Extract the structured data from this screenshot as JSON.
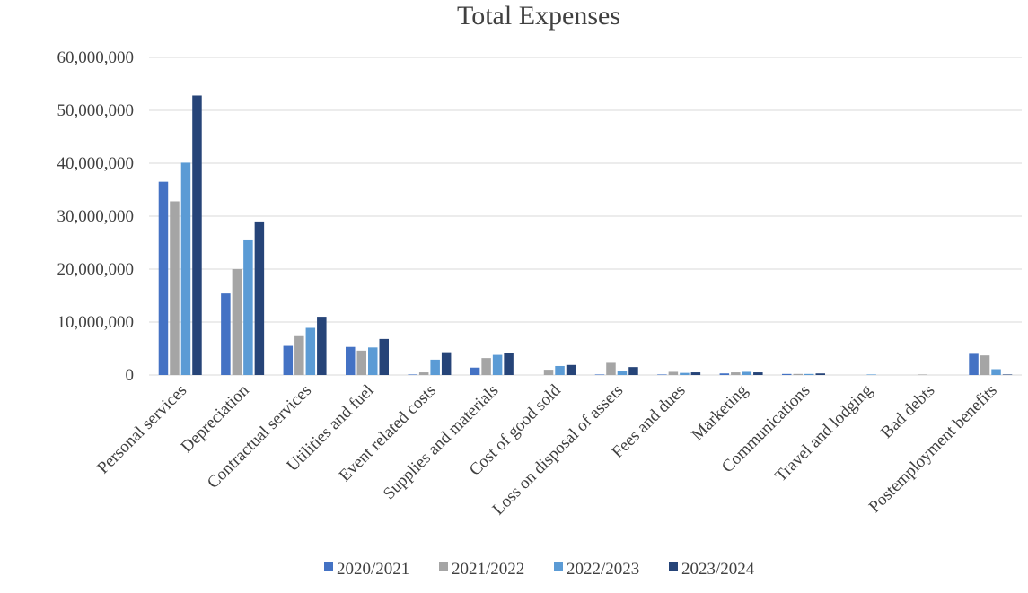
{
  "chart_data": {
    "type": "bar",
    "title": "Total Expenses",
    "xlabel": "",
    "ylabel": "",
    "ylim": [
      0,
      60000000
    ],
    "yticks": [
      0,
      10000000,
      20000000,
      30000000,
      40000000,
      50000000,
      60000000
    ],
    "ytick_labels": [
      "0",
      "10,000,000",
      "20,000,000",
      "30,000,000",
      "40,000,000",
      "50,000,000",
      "60,000,000"
    ],
    "grid": true,
    "legend_position": "bottom",
    "categories": [
      "Personal services",
      "Depreciation",
      "Contractual services",
      "Utilities and fuel",
      "Event related costs",
      "Supplies and materials",
      "Cost of good sold",
      "Loss on disposal of assets",
      "Fees and dues",
      "Marketing",
      "Communications",
      "Travel and lodging",
      "Bad debts",
      "Postemployment benefits"
    ],
    "series": [
      {
        "name": "2020/2021",
        "color": "#4472c4",
        "values": [
          36500000,
          15400000,
          5500000,
          5300000,
          100000,
          1400000,
          0,
          100000,
          100000,
          300000,
          200000,
          0,
          0,
          4000000
        ]
      },
      {
        "name": "2021/2022",
        "color": "#a5a5a5",
        "values": [
          32800000,
          20000000,
          7500000,
          4600000,
          500000,
          3200000,
          1000000,
          2300000,
          600000,
          500000,
          200000,
          0,
          100000,
          3700000
        ]
      },
      {
        "name": "2022/2023",
        "color": "#5b9bd5",
        "values": [
          40100000,
          25600000,
          8900000,
          5200000,
          2900000,
          3800000,
          1700000,
          700000,
          400000,
          600000,
          200000,
          100000,
          0,
          1100000
        ]
      },
      {
        "name": "2023/2024",
        "color": "#264478",
        "values": [
          52800000,
          29000000,
          11000000,
          6800000,
          4300000,
          4200000,
          1900000,
          1500000,
          500000,
          500000,
          300000,
          0,
          0,
          100000
        ]
      }
    ]
  }
}
